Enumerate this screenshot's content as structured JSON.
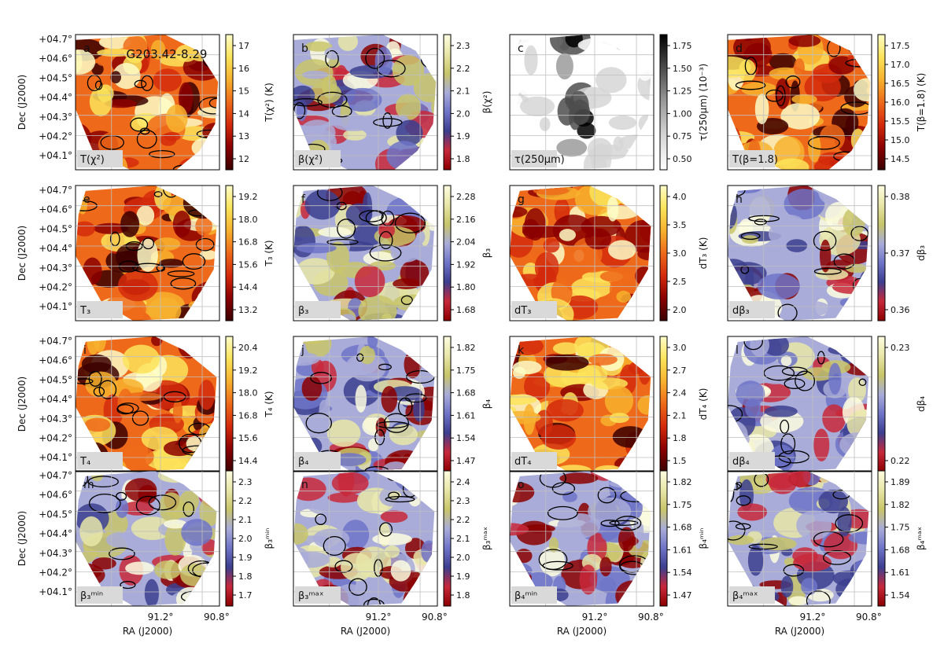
{
  "figure": {
    "source_title": "G203.42-8.29",
    "ra_axis_label": "RA (J2000)",
    "dec_axis_label": "Dec (J2000)",
    "ra_ticks": [
      "91.2°",
      "90.8°"
    ],
    "dec_ticks": [
      "+04.7°",
      "+04.6°",
      "+04.5°",
      "+04.4°",
      "+04.3°",
      "+04.2°",
      "+04.1°"
    ],
    "colormaps": {
      "hot": [
        "#3b0000",
        "#8b0000",
        "#d42a0c",
        "#ee6a1a",
        "#f7b12e",
        "#fbe35a",
        "#fdfdc8"
      ],
      "diverging": [
        "#8b0000",
        "#c8283a",
        "#3c3f8f",
        "#6f74c8",
        "#a9acd8",
        "#c9c56a",
        "#e8e6a8",
        "#fdfde0"
      ],
      "gray": [
        "#ffffff",
        "#d6d6d6",
        "#9b9b9b",
        "#4d4d4d",
        "#000000"
      ]
    },
    "panels": [
      {
        "letter": "a",
        "label": "T(χ²)",
        "cmap": "hot",
        "colorbar_label": "T(χ²) (K)",
        "colorbar_ticks": [
          "17",
          "16",
          "15",
          "14",
          "13",
          "12"
        ]
      },
      {
        "letter": "b",
        "label": "β(χ²)",
        "cmap": "diverging",
        "colorbar_label": "β(χ²)",
        "colorbar_ticks": [
          "2.3",
          "2.2",
          "2.1",
          "2.0",
          "1.9",
          "1.8"
        ]
      },
      {
        "letter": "c",
        "label": "τ(250μm)",
        "cmap": "gray",
        "colorbar_label": "τ(250μm) (10⁻³)",
        "colorbar_ticks": [
          "1.75",
          "1.50",
          "1.25",
          "1.00",
          "0.75",
          "0.50"
        ]
      },
      {
        "letter": "d",
        "label": "T(β=1.8)",
        "cmap": "hot",
        "colorbar_label": "T(β=1.8) (K)",
        "colorbar_ticks": [
          "17.5",
          "17.0",
          "16.5",
          "16.0",
          "15.5",
          "15.0",
          "14.5"
        ]
      },
      {
        "letter": "e",
        "label": "T₃",
        "cmap": "hot",
        "colorbar_label": "T₃ (K)",
        "colorbar_ticks": [
          "19.2",
          "18.0",
          "16.8",
          "15.6",
          "14.4",
          "13.2"
        ]
      },
      {
        "letter": "f",
        "label": "β₃",
        "cmap": "diverging",
        "colorbar_label": "β₃",
        "colorbar_ticks": [
          "2.28",
          "2.16",
          "2.04",
          "1.92",
          "1.80",
          "1.68"
        ]
      },
      {
        "letter": "g",
        "label": "dT₃",
        "cmap": "hot",
        "colorbar_label": "dT₃ (K)",
        "colorbar_ticks": [
          "4.0",
          "3.5",
          "3.0",
          "2.5",
          "2.0"
        ]
      },
      {
        "letter": "h",
        "label": "dβ₃",
        "cmap": "diverging",
        "colorbar_label": "dβ₃",
        "colorbar_ticks": [
          "0.38",
          "0.37",
          "0.36"
        ]
      },
      {
        "letter": "i",
        "label": "T₄",
        "cmap": "hot",
        "colorbar_label": "T₄ (K)",
        "colorbar_ticks": [
          "20.4",
          "19.2",
          "18.0",
          "16.8",
          "15.6",
          "14.4"
        ]
      },
      {
        "letter": "j",
        "label": "β₄",
        "cmap": "diverging",
        "colorbar_label": "β₄",
        "colorbar_ticks": [
          "1.82",
          "1.75",
          "1.68",
          "1.61",
          "1.54",
          "1.47"
        ]
      },
      {
        "letter": "k",
        "label": "dT₄",
        "cmap": "hot",
        "colorbar_label": "dT₄ (K)",
        "colorbar_ticks": [
          "3.0",
          "2.7",
          "2.4",
          "2.1",
          "1.8",
          "1.5"
        ]
      },
      {
        "letter": "l",
        "label": "dβ₄",
        "cmap": "diverging",
        "colorbar_label": "dβ₄",
        "colorbar_ticks": [
          "0.23",
          "0.22"
        ]
      },
      {
        "letter": "m",
        "label": "β₃ᵐⁱⁿ",
        "cmap": "diverging",
        "colorbar_label": "β₃ᵐⁱⁿ",
        "colorbar_ticks": [
          "2.3",
          "2.2",
          "2.1",
          "2.0",
          "1.9",
          "1.8",
          "1.7"
        ]
      },
      {
        "letter": "n",
        "label": "β₃ᵐᵃˣ",
        "cmap": "diverging",
        "colorbar_label": "β₃ᵐᵃˣ",
        "colorbar_ticks": [
          "2.4",
          "2.3",
          "2.2",
          "2.1",
          "2.0",
          "1.9",
          "1.8"
        ]
      },
      {
        "letter": "o",
        "label": "β₄ᵐⁱⁿ",
        "cmap": "diverging",
        "colorbar_label": "β₄ᵐⁱⁿ",
        "colorbar_ticks": [
          "1.82",
          "1.75",
          "1.68",
          "1.61",
          "1.54",
          "1.47"
        ]
      },
      {
        "letter": "p",
        "label": "β₄ᵐᵃˣ",
        "cmap": "diverging",
        "colorbar_label": "β₄ᵐᵃˣ",
        "colorbar_ticks": [
          "1.89",
          "1.82",
          "1.75",
          "1.68",
          "1.61",
          "1.54"
        ]
      }
    ]
  }
}
